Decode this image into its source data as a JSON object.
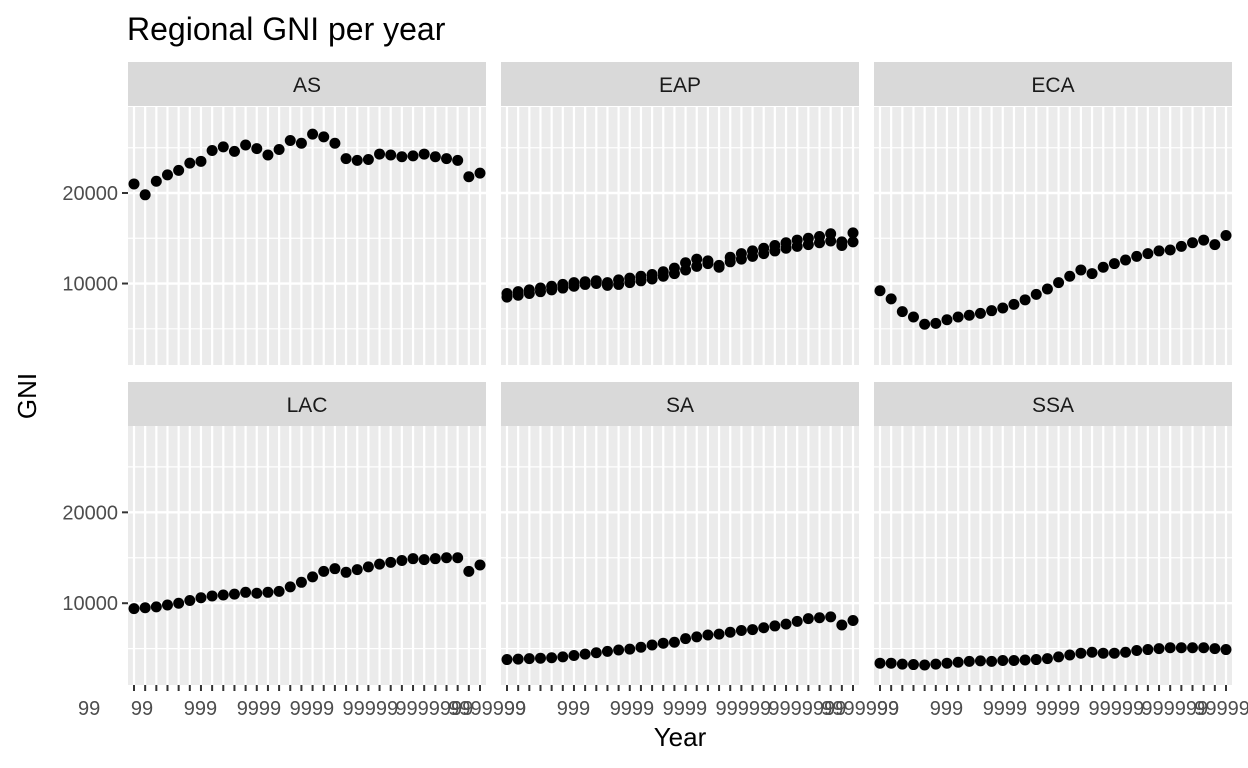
{
  "chart_data": {
    "type": "scatter",
    "title": "Regional GNI per year",
    "xlabel": "Year",
    "ylabel": "GNI",
    "ylim": [
      1000,
      29500
    ],
    "y_ticks": [
      10000,
      20000
    ],
    "y_tick_labels": [
      "10000",
      "20000"
    ],
    "layout": "facet-grid-2x3",
    "panels": [
      {
        "name": "AS",
        "values": [
          21000,
          19800,
          21300,
          22000,
          22500,
          23300,
          23500,
          24700,
          25100,
          24600,
          25300,
          24900,
          24200,
          24800,
          25800,
          25500,
          26500,
          26200,
          25500,
          23800,
          23600,
          23700,
          24300,
          24200,
          24000,
          24100,
          24300,
          24000,
          23800,
          23600,
          21800,
          22200
        ]
      },
      {
        "name": "EAP",
        "values": [
          8500,
          8700,
          8900,
          9100,
          9300,
          9500,
          9700,
          9900,
          10000,
          9800,
          9900,
          10100,
          10300,
          10500,
          10800,
          11100,
          11500,
          11900,
          12200,
          12000,
          12400,
          12700,
          13000,
          13300,
          13600,
          13900,
          14100,
          14300,
          14500,
          14700,
          14200,
          14600
        ],
        "values_b": [
          8900,
          9100,
          9300,
          9500,
          9700,
          9900,
          10100,
          10200,
          10300,
          10100,
          10400,
          10600,
          10800,
          11000,
          11300,
          11700,
          12300,
          12700,
          12500,
          11800,
          12900,
          13300,
          13600,
          13900,
          14200,
          14500,
          14800,
          15000,
          15200,
          15500,
          14600,
          15600
        ]
      },
      {
        "name": "ECA",
        "values": [
          9200,
          8300,
          6900,
          6300,
          5500,
          5600,
          6000,
          6300,
          6500,
          6700,
          7000,
          7300,
          7700,
          8200,
          8800,
          9400,
          10100,
          10800,
          11500,
          11100,
          11800,
          12200,
          12600,
          13000,
          13300,
          13600,
          13700,
          14100,
          14500,
          14800,
          14300,
          15300
        ]
      },
      {
        "name": "LAC",
        "values": [
          9400,
          9500,
          9600,
          9800,
          10000,
          10300,
          10600,
          10800,
          10900,
          11000,
          11200,
          11100,
          11200,
          11300,
          11800,
          12300,
          12900,
          13500,
          13800,
          13400,
          13700,
          14000,
          14300,
          14500,
          14700,
          14900,
          14800,
          14900,
          15000,
          15000,
          13500,
          14200
        ]
      },
      {
        "name": "SA",
        "values": [
          3800,
          3850,
          3900,
          3950,
          4000,
          4100,
          4250,
          4400,
          4550,
          4700,
          4850,
          4950,
          5150,
          5400,
          5600,
          5700,
          6100,
          6300,
          6500,
          6600,
          6800,
          7000,
          7100,
          7300,
          7500,
          7700,
          8000,
          8300,
          8400,
          8500,
          7600,
          8100
        ]
      },
      {
        "name": "SSA",
        "values": [
          3400,
          3400,
          3300,
          3250,
          3200,
          3300,
          3400,
          3500,
          3600,
          3650,
          3600,
          3700,
          3700,
          3750,
          3800,
          3900,
          4100,
          4300,
          4500,
          4600,
          4500,
          4500,
          4600,
          4800,
          4900,
          5000,
          5100,
          5100,
          5100,
          5100,
          5000,
          4900
        ]
      }
    ],
    "x_tick_labels": [
      "99",
      "99",
      "999",
      "9999",
      "9999",
      "99999",
      "999999",
      "9999999"
    ],
    "grid": true,
    "legend": "none",
    "colors": {
      "point": "#000000",
      "panel_bg": "#ebebeb",
      "grid": "#ffffff",
      "strip_bg": "#d9d9d9"
    }
  }
}
